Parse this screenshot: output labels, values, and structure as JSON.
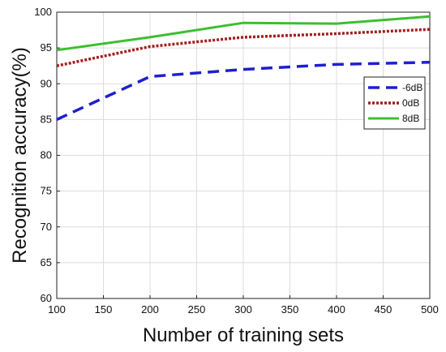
{
  "chart_data": {
    "type": "line",
    "xlabel": "Number of training sets",
    "ylabel": "Recognition accuracy(%)",
    "xlim": [
      100,
      500
    ],
    "ylim": [
      60,
      100
    ],
    "xticks": [
      100,
      150,
      200,
      250,
      300,
      350,
      400,
      450,
      500
    ],
    "yticks": [
      60,
      65,
      70,
      75,
      80,
      85,
      90,
      95,
      100
    ],
    "grid": true,
    "legend_position": "right",
    "series": [
      {
        "name": "-6dB",
        "style": "dashed",
        "color": "#1f1fd0",
        "x": [
          100,
          200,
          300,
          400,
          500
        ],
        "y": [
          85.0,
          91.0,
          92.0,
          92.7,
          93.0
        ]
      },
      {
        "name": "0dB",
        "style": "dotted",
        "color": "#a51d1d",
        "x": [
          100,
          200,
          300,
          400,
          500
        ],
        "y": [
          92.5,
          95.2,
          96.5,
          97.0,
          97.6
        ]
      },
      {
        "name": "8dB",
        "style": "solid",
        "color": "#3cbf2e",
        "x": [
          100,
          200,
          300,
          400,
          500
        ],
        "y": [
          94.7,
          96.5,
          98.5,
          98.4,
          99.4
        ]
      }
    ]
  }
}
